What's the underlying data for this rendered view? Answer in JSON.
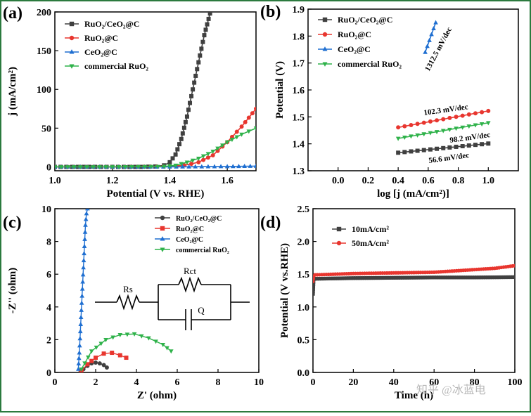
{
  "colors": {
    "RuO2_CeO2_C": "#404040",
    "RuO2_C": "#e8362f",
    "CeO2_C": "#1f6fd1",
    "commercial_RuO2": "#2fb24a",
    "frame": "#000000",
    "border": "#2b7a3e"
  },
  "circuit": {
    "rs": "Rs",
    "rct": "Rct",
    "q": "Q"
  },
  "watermark": "知乎 @冰蓝电",
  "chart_data": [
    {
      "id": "a",
      "type": "line",
      "panel_label": "(a)",
      "xlabel": "Potential (V vs. RHE)",
      "ylabel": "j (mA/cm²)",
      "xlim": [
        1.0,
        1.7
      ],
      "ylim": [
        -5,
        200
      ],
      "xticks": [
        "1.0",
        "1.2",
        "1.4",
        "1.6"
      ],
      "yticks": [
        "0",
        "50",
        "100",
        "150",
        "200"
      ],
      "legend_position": "top-left",
      "series": [
        {
          "name": "RuO₂/CeO₂@C",
          "color": "#404040",
          "marker": "square",
          "x": [
            1.0,
            1.1,
            1.2,
            1.3,
            1.35,
            1.38,
            1.4,
            1.42,
            1.44,
            1.46,
            1.48,
            1.5,
            1.52,
            1.54
          ],
          "y": [
            0,
            0,
            0,
            0,
            0.5,
            2,
            6,
            16,
            36,
            65,
            100,
            135,
            170,
            198
          ]
        },
        {
          "name": "RuO₂@C",
          "color": "#e8362f",
          "marker": "circle",
          "x": [
            1.0,
            1.2,
            1.4,
            1.45,
            1.5,
            1.55,
            1.6,
            1.65,
            1.7
          ],
          "y": [
            0,
            0,
            0.5,
            2,
            6,
            15,
            32,
            52,
            75
          ]
        },
        {
          "name": "CeO₂@C",
          "color": "#1f6fd1",
          "marker": "triangle",
          "x": [
            1.0,
            1.2,
            1.4,
            1.6,
            1.7
          ],
          "y": [
            0,
            0,
            0,
            0.5,
            1
          ]
        },
        {
          "name": "commercial RuO₂",
          "color": "#2fb24a",
          "marker": "triangle-down",
          "x": [
            1.0,
            1.2,
            1.38,
            1.42,
            1.46,
            1.5,
            1.55,
            1.6,
            1.65,
            1.7
          ],
          "y": [
            0,
            0,
            0.5,
            2,
            6,
            11,
            20,
            32,
            42,
            50
          ]
        }
      ]
    },
    {
      "id": "b",
      "type": "line",
      "panel_label": "(b)",
      "xlabel": "log [j (mA/cm²)]",
      "ylabel": "Potential (V)",
      "xlim": [
        -0.2,
        1.2
      ],
      "ylim": [
        1.3,
        1.9
      ],
      "xticks": [
        "0.0",
        "0.2",
        "0.4",
        "0.6",
        "0.8",
        "1.0"
      ],
      "yticks": [
        "1.3",
        "1.4",
        "1.5",
        "1.6",
        "1.7",
        "1.8",
        "1.9"
      ],
      "legend_position": "top-left",
      "series": [
        {
          "name": "RuO₂/CeO₂@C",
          "color": "#404040",
          "marker": "square",
          "x": [
            0.4,
            1.0
          ],
          "y": [
            1.367,
            1.401
          ],
          "annotation": "56.6 mV/dec"
        },
        {
          "name": "RuO₂@C",
          "color": "#e8362f",
          "marker": "circle",
          "x": [
            0.4,
            1.0
          ],
          "y": [
            1.461,
            1.522
          ],
          "annotation": "102.3 mV/dec"
        },
        {
          "name": "CeO₂@C",
          "color": "#1f6fd1",
          "marker": "triangle",
          "x": [
            0.58,
            0.65
          ],
          "y": [
            1.74,
            1.85
          ],
          "annotation": "1312.5 mV/dec"
        },
        {
          "name": "commercial RuO₂",
          "color": "#2fb24a",
          "marker": "triangle-down",
          "x": [
            0.4,
            1.0
          ],
          "y": [
            1.42,
            1.478
          ],
          "annotation": "98.2 mV/dec"
        }
      ]
    },
    {
      "id": "c",
      "type": "scatter",
      "panel_label": "(c)",
      "xlabel": "Z' (ohm)",
      "ylabel": "-Z'' (ohm)",
      "xlim": [
        0,
        10
      ],
      "ylim": [
        0,
        10
      ],
      "xticks": [
        "0",
        "2",
        "4",
        "6",
        "8",
        "10"
      ],
      "yticks": [
        "0",
        "2",
        "4",
        "6",
        "8",
        "10"
      ],
      "legend_position": "top-right",
      "series": [
        {
          "name": "RuO₂/CeO₂@C",
          "color": "#404040",
          "marker": "circle",
          "x": [
            1.25,
            1.4,
            1.6,
            1.8,
            2.0,
            2.2,
            2.4,
            2.55
          ],
          "y": [
            0.0,
            0.2,
            0.4,
            0.55,
            0.6,
            0.55,
            0.45,
            0.3
          ]
        },
        {
          "name": "RuO₂@C",
          "color": "#e8362f",
          "marker": "square",
          "x": [
            1.3,
            1.6,
            2.0,
            2.4,
            2.8,
            3.2,
            3.5
          ],
          "y": [
            0.1,
            0.5,
            0.9,
            1.15,
            1.2,
            1.05,
            0.9
          ]
        },
        {
          "name": "CeO₂@C",
          "color": "#1f6fd1",
          "marker": "triangle",
          "x": [
            1.15,
            1.2,
            1.25,
            1.3,
            1.35,
            1.4,
            1.45,
            1.5,
            1.55,
            1.6
          ],
          "y": [
            0.2,
            1.2,
            2.5,
            3.8,
            5.1,
            6.4,
            7.7,
            9.0,
            9.7,
            10.0
          ]
        },
        {
          "name": "commercial RuO₂",
          "color": "#2fb24a",
          "marker": "triangle-down",
          "x": [
            1.3,
            1.8,
            2.5,
            3.2,
            3.9,
            4.6,
            5.3,
            5.7
          ],
          "y": [
            0.2,
            1.3,
            2.0,
            2.3,
            2.35,
            2.1,
            1.7,
            1.3
          ]
        }
      ]
    },
    {
      "id": "d",
      "type": "line",
      "panel_label": "(d)",
      "xlabel": "Time (h)",
      "ylabel": "Potential (V vs.RHE)",
      "xlim": [
        0,
        100
      ],
      "ylim": [
        0.0,
        2.5
      ],
      "xticks": [
        "0",
        "20",
        "40",
        "60",
        "80",
        "100"
      ],
      "yticks": [
        "0.0",
        "0.5",
        "1.0",
        "1.5",
        "2.0",
        "2.5"
      ],
      "legend_position": "top-left",
      "series": [
        {
          "name": "10mA/cm²",
          "color": "#404040",
          "marker": "square",
          "x": [
            0,
            0.3,
            1,
            20,
            40,
            60,
            80,
            100
          ],
          "y": [
            1.2,
            1.42,
            1.43,
            1.44,
            1.445,
            1.45,
            1.45,
            1.455
          ]
        },
        {
          "name": "50mA/cm²",
          "color": "#e8362f",
          "marker": "circle",
          "x": [
            0,
            0.3,
            1,
            20,
            40,
            60,
            70,
            80,
            90,
            100
          ],
          "y": [
            1.39,
            1.47,
            1.49,
            1.51,
            1.52,
            1.53,
            1.55,
            1.57,
            1.59,
            1.63
          ]
        }
      ]
    }
  ]
}
